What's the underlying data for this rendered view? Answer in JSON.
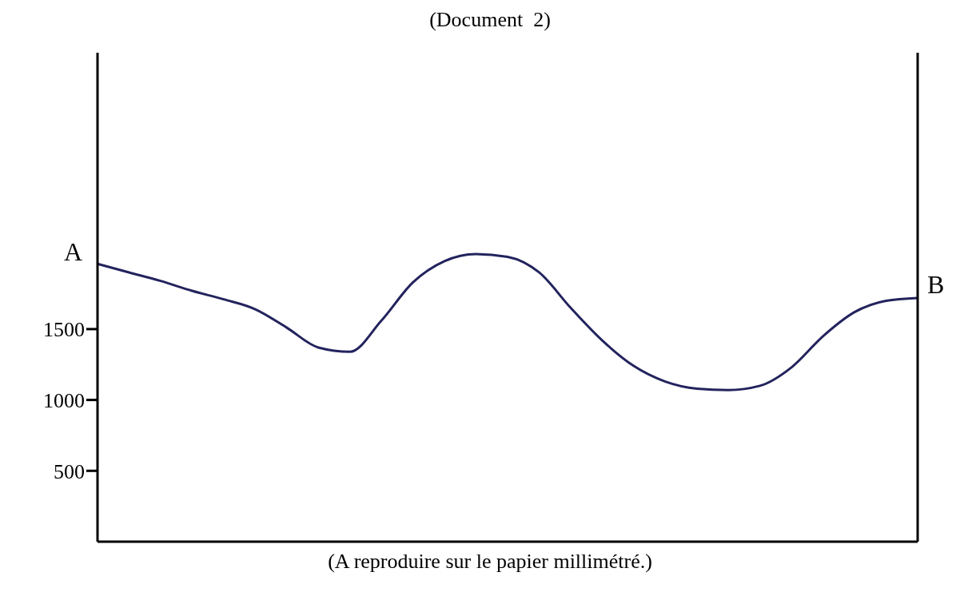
{
  "chart_data": {
    "type": "line",
    "title": "(Document  2)",
    "annotations": [
      "A",
      "B",
      "(A reproduire sur le papier millimétré.)"
    ],
    "categories": [
      null,
      null,
      null,
      null,
      null,
      null,
      null,
      null,
      null,
      null,
      null,
      null,
      null,
      null,
      null,
      null,
      null,
      null,
      null,
      null,
      null,
      null,
      null,
      null,
      null,
      null,
      null
    ],
    "values": [
      1960,
      1900,
      1840,
      1770,
      1710,
      1640,
      1510,
      1370,
      1340,
      1560,
      1830,
      1980,
      2030,
      2010,
      1900,
      1650,
      1420,
      1240,
      1130,
      1080,
      1070,
      1100,
      1230,
      1450,
      1620,
      1700,
      1720
    ],
    "color": "#23235e",
    "ylim": [
      0,
      3450
    ],
    "yticks": [
      500,
      1000,
      1500
    ],
    "tick_labels": "y",
    "marker": "none",
    "line_style": "solid"
  }
}
